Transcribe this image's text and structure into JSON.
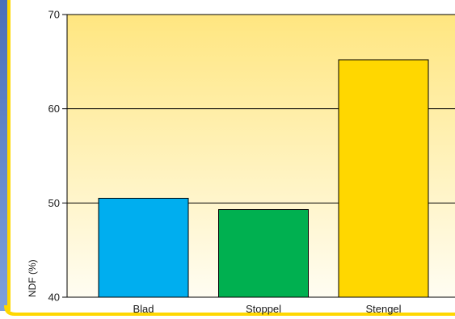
{
  "chart_data": {
    "type": "bar",
    "categories": [
      "Blad",
      "Stoppel",
      "Stengel"
    ],
    "values": [
      50.5,
      49.3,
      65.2
    ],
    "bar_colors": [
      "#00aeef",
      "#00b050",
      "#ffd700"
    ],
    "ylabel": "NDF (%)",
    "ylim": [
      40,
      70
    ],
    "yticks": [
      40,
      50,
      60,
      70
    ],
    "grid": true,
    "background_gradient": [
      "#ffe680",
      "#fffdf2"
    ],
    "frame_colors": [
      "#5b7fc4",
      "#ffd700"
    ]
  }
}
